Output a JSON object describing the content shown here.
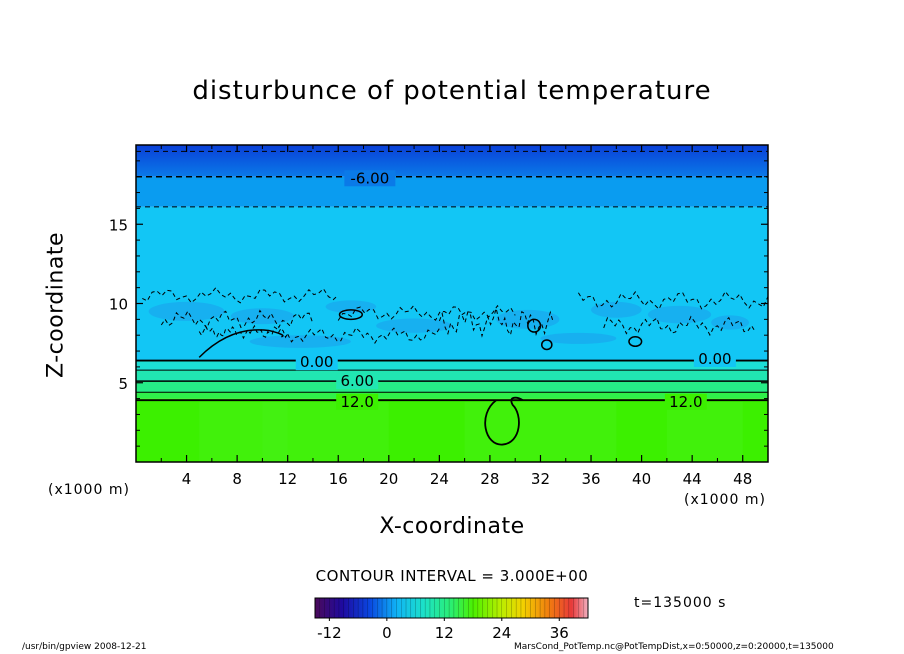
{
  "chart_data": {
    "type": "heatmap",
    "title": "disturbunce of potential temperature",
    "xlabel": "X-coordinate",
    "ylabel": "Z-coordinate",
    "x_unit_label": "(x1000 m)",
    "xlim": [
      0,
      50
    ],
    "ylim": [
      0,
      20
    ],
    "x_ticks": [
      4,
      8,
      12,
      16,
      20,
      24,
      28,
      32,
      36,
      40,
      44,
      48
    ],
    "y_ticks": [
      5,
      10,
      15
    ],
    "contour_interval_label": "CONTOUR INTERVAL = 3.000E+00",
    "time_label": "t=135000 s",
    "colorbar": {
      "range": [
        -15,
        42
      ],
      "ticks": [
        -12,
        0,
        12,
        24,
        36
      ]
    },
    "contour_labels": [
      {
        "text": "-6.00",
        "x": 18.5,
        "z": 17.9
      },
      {
        "text": "0.00",
        "x": 14.3,
        "z": 6.3
      },
      {
        "text": "0.00",
        "x": 45.8,
        "z": 6.5
      },
      {
        "text": "6.00",
        "x": 17.5,
        "z": 5.1
      },
      {
        "text": "12.0",
        "x": 17.5,
        "z": 3.8
      },
      {
        "text": "12.0",
        "x": 43.5,
        "z": 3.8
      }
    ],
    "layers": [
      {
        "z_bottom": 0,
        "z_top": 4.0,
        "value": 12,
        "color": "#3cf000"
      },
      {
        "z_bottom": 4.0,
        "z_top": 4.4,
        "value": 10,
        "color": "#2ff04a"
      },
      {
        "z_bottom": 4.4,
        "z_top": 5.1,
        "value": 7,
        "color": "#26ec86"
      },
      {
        "z_bottom": 5.1,
        "z_top": 5.8,
        "value": 5,
        "color": "#21e6b2"
      },
      {
        "z_bottom": 5.8,
        "z_top": 6.4,
        "value": 2,
        "color": "#1cdfd6"
      },
      {
        "z_bottom": 6.4,
        "z_top": 16.1,
        "value": -3,
        "color": "#12c6f5"
      },
      {
        "z_bottom": 16.1,
        "z_top": 18.0,
        "value": -6,
        "color": "#0a9cf0"
      },
      {
        "z_bottom": 18.0,
        "z_top": 20,
        "value": -9,
        "color": "#0a5ce2"
      }
    ],
    "grid": false
  },
  "footer": {
    "left": "/usr/bin/gpview   2008-12-21",
    "right": "MarsCond_PotTemp.nc@PotTempDist,x=0:50000,z=0:20000,t=135000"
  }
}
